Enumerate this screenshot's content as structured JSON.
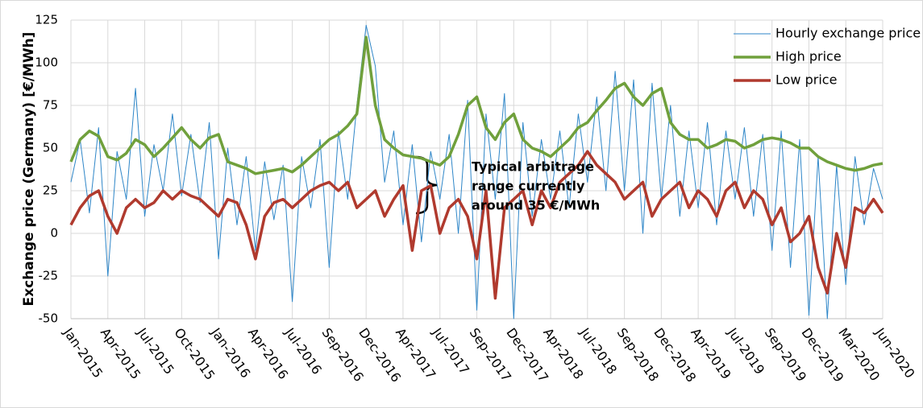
{
  "chart_data": {
    "type": "line",
    "y_label": "Exchange price (Germany) [€/MWh]",
    "annotation": [
      "Typical arbitrage",
      "range currently",
      "around 35 €/MWh"
    ],
    "categories": [
      "Jan-2015",
      null,
      null,
      null,
      "Apr-2015",
      null,
      null,
      null,
      "Jul-2015",
      null,
      null,
      null,
      "Oct-2015",
      null,
      null,
      null,
      "Jan-2016",
      null,
      null,
      null,
      "Apr-2016",
      null,
      null,
      null,
      "Jul-2016",
      null,
      null,
      null,
      "Sep-2016",
      null,
      null,
      null,
      "Dec-2016",
      null,
      null,
      null,
      "Apr-2017",
      null,
      null,
      null,
      "Jul-2017",
      null,
      null,
      null,
      "Sep-2017",
      null,
      null,
      null,
      "Dec-2017",
      null,
      null,
      null,
      "Apr-2018",
      null,
      null,
      null,
      "Jul-2018",
      null,
      null,
      null,
      "Sep-2018",
      null,
      null,
      null,
      "Dec-2018",
      null,
      null,
      null,
      "Apr-2019",
      null,
      null,
      null,
      "Jul-2019",
      null,
      null,
      null,
      "Sep-2019",
      null,
      null,
      null,
      "Dec-2019",
      null,
      null,
      null,
      "Mar-2020",
      null,
      null,
      null,
      "Jun-2020"
    ],
    "series": [
      {
        "name": "Hourly exchange price",
        "color": "#2e86c8",
        "width": 1,
        "values": [
          30,
          55,
          12,
          62,
          -25,
          48,
          20,
          85,
          10,
          52,
          25,
          70,
          22,
          58,
          18,
          65,
          -15,
          50,
          5,
          45,
          -10,
          42,
          8,
          40,
          -40,
          45,
          15,
          55,
          -20,
          60,
          20,
          75,
          122,
          98,
          30,
          60,
          5,
          52,
          -5,
          48,
          20,
          58,
          0,
          78,
          -45,
          70,
          20,
          82,
          -50,
          65,
          10,
          55,
          20,
          60,
          15,
          70,
          30,
          80,
          25,
          95,
          25,
          90,
          0,
          88,
          20,
          75,
          10,
          60,
          15,
          65,
          5,
          60,
          20,
          62,
          10,
          58,
          -10,
          60,
          -20,
          55,
          -48,
          45,
          -50,
          40,
          -30,
          45,
          5,
          38,
          20
        ]
      },
      {
        "name": "High price",
        "color": "#70a03c",
        "width": 3.5,
        "values": [
          42,
          55,
          60,
          57,
          45,
          43,
          47,
          55,
          52,
          45,
          50,
          56,
          62,
          55,
          50,
          56,
          58,
          42,
          40,
          38,
          35,
          36,
          37,
          38,
          36,
          40,
          45,
          50,
          55,
          58,
          63,
          70,
          115,
          75,
          55,
          50,
          46,
          45,
          44,
          42,
          40,
          45,
          58,
          75,
          80,
          62,
          55,
          65,
          70,
          55,
          50,
          48,
          45,
          50,
          55,
          62,
          65,
          72,
          78,
          85,
          88,
          80,
          75,
          82,
          85,
          65,
          58,
          55,
          55,
          50,
          52,
          55,
          54,
          50,
          52,
          55,
          56,
          55,
          53,
          50,
          50,
          45,
          42,
          40,
          38,
          37,
          38,
          40,
          41
        ]
      },
      {
        "name": "Low price",
        "color": "#b03a2e",
        "width": 3.5,
        "values": [
          5,
          15,
          22,
          25,
          10,
          0,
          15,
          20,
          15,
          18,
          25,
          20,
          25,
          22,
          20,
          15,
          10,
          20,
          18,
          5,
          -15,
          10,
          18,
          20,
          15,
          20,
          25,
          28,
          30,
          25,
          30,
          15,
          20,
          25,
          10,
          20,
          28,
          -10,
          25,
          28,
          0,
          15,
          20,
          10,
          -15,
          25,
          -38,
          15,
          20,
          25,
          5,
          25,
          15,
          30,
          35,
          40,
          48,
          40,
          35,
          30,
          20,
          25,
          30,
          10,
          20,
          25,
          30,
          15,
          25,
          20,
          10,
          25,
          30,
          15,
          25,
          20,
          5,
          15,
          -5,
          0,
          10,
          -20,
          -35,
          0,
          -20,
          15,
          12,
          20,
          12
        ]
      }
    ],
    "ylim": [
      -50,
      125
    ],
    "yticks": [
      -50,
      -25,
      0,
      25,
      50,
      75,
      100,
      125
    ],
    "grid": true,
    "legend": "upper right"
  }
}
